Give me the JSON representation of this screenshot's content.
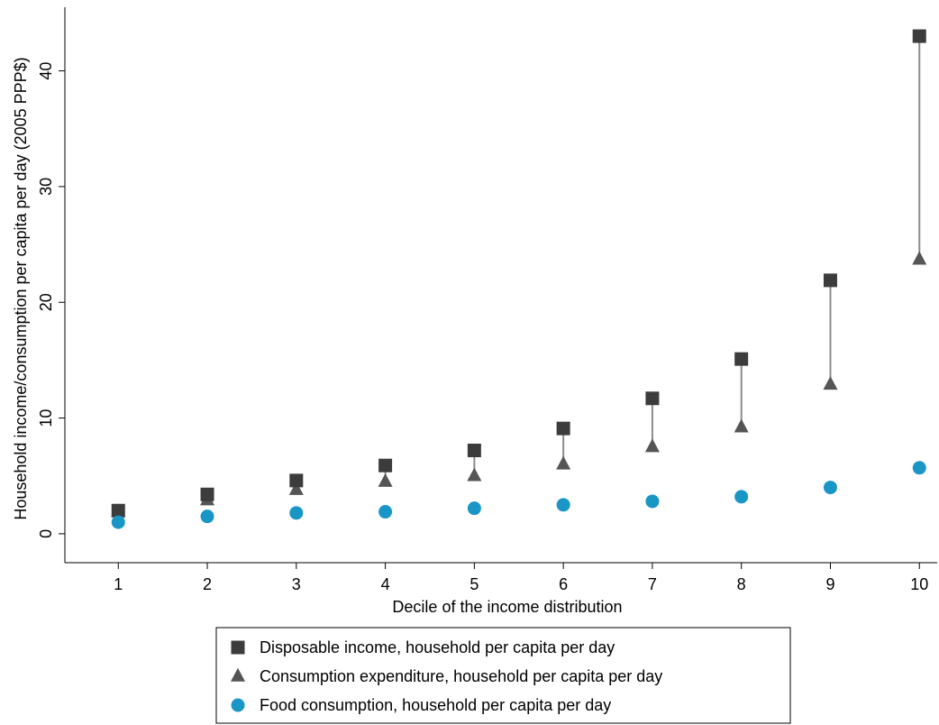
{
  "chart_data": {
    "type": "scatter",
    "title": "",
    "xlabel": "Decile of the income distribution",
    "ylabel": "Household income/consumption per capita per day (2005 PPP$)",
    "x": [
      1,
      2,
      3,
      4,
      5,
      6,
      7,
      8,
      9,
      10
    ],
    "xlim": [
      0.4,
      10.2
    ],
    "ylim": [
      -2.5,
      45.5
    ],
    "x_ticks": [
      1,
      2,
      3,
      4,
      5,
      6,
      7,
      8,
      9,
      10
    ],
    "y_ticks": [
      0,
      10,
      20,
      30,
      40
    ],
    "grid": false,
    "legend_position": "bottom",
    "series": [
      {
        "name": "Disposable income, household per capita per day",
        "marker": "square",
        "color": "#3c3c3c",
        "values": [
          2.0,
          3.4,
          4.6,
          5.9,
          7.2,
          9.1,
          11.7,
          15.1,
          21.9,
          43.0
        ]
      },
      {
        "name": "Consumption expenditure, household per capita per day",
        "marker": "triangle",
        "color": "#555555",
        "values": [
          1.9,
          2.9,
          3.8,
          4.5,
          5.0,
          6.0,
          7.5,
          9.2,
          12.9,
          23.7
        ]
      },
      {
        "name": "Food consumption, household per capita per day",
        "marker": "circle",
        "color": "#1a96c6",
        "values": [
          1.0,
          1.5,
          1.8,
          1.9,
          2.2,
          2.5,
          2.8,
          3.2,
          4.0,
          5.7
        ]
      }
    ],
    "range_lines": {
      "between": [
        "Disposable income, household per capita per day",
        "Consumption expenditure, household per capita per day"
      ],
      "color": "#8c8c8c"
    }
  }
}
